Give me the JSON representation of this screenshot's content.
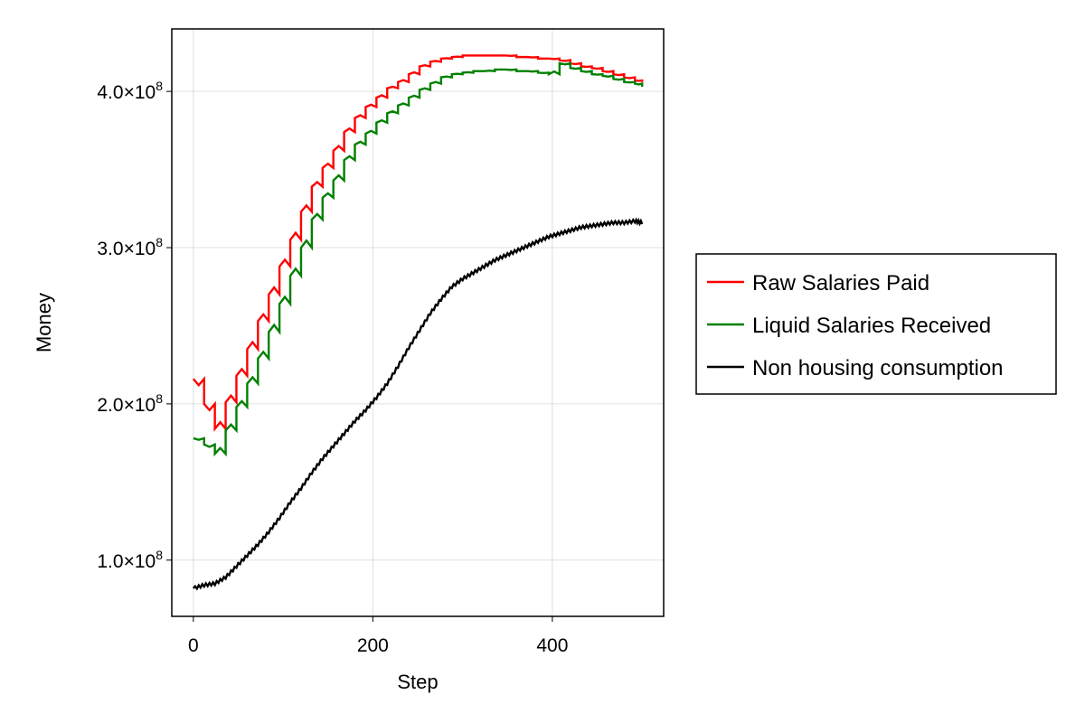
{
  "chart_data": {
    "type": "line",
    "title": "",
    "xlabel": "Step",
    "ylabel": "Money",
    "xlim": [
      -24,
      524
    ],
    "ylim": [
      64000000,
      440000000
    ],
    "xticks": [
      {
        "value": 0,
        "label": "0"
      },
      {
        "value": 200,
        "label": "200"
      },
      {
        "value": 400,
        "label": "400"
      }
    ],
    "yticks": [
      {
        "value": 100000000,
        "mantissa": "1.0×10",
        "exponent": "8"
      },
      {
        "value": 200000000,
        "mantissa": "2.0×10",
        "exponent": "8"
      },
      {
        "value": 300000000,
        "mantissa": "3.0×10",
        "exponent": "8"
      },
      {
        "value": 400000000,
        "mantissa": "4.0×10",
        "exponent": "8"
      }
    ],
    "grid": true,
    "legend_position": "right",
    "series": [
      {
        "name": "Raw Salaries Paid",
        "color": "#ff0000",
        "sawtooth": true,
        "x": [
          0,
          12,
          24,
          36,
          48,
          60,
          72,
          84,
          96,
          108,
          120,
          132,
          144,
          156,
          168,
          180,
          192,
          204,
          216,
          228,
          240,
          252,
          264,
          276,
          288,
          300,
          312,
          324,
          336,
          348,
          360,
          372,
          384,
          396,
          408,
          420,
          432,
          444,
          456,
          468,
          480,
          492,
          500
        ],
        "values": [
          216000000,
          200000000,
          184000000,
          201000000,
          218000000,
          235000000,
          253000000,
          270000000,
          288000000,
          305000000,
          323000000,
          339000000,
          351000000,
          362000000,
          374000000,
          383000000,
          390000000,
          396000000,
          402000000,
          406000000,
          411000000,
          416000000,
          419000000,
          421000000,
          422000000,
          423000000,
          423000000,
          423000000,
          423000000,
          423000000,
          422000000,
          422000000,
          421000000,
          421000000,
          420000000,
          418000000,
          416000000,
          415000000,
          413000000,
          411000000,
          409000000,
          407000000,
          406000000
        ]
      },
      {
        "name": "Liquid Salaries Received",
        "color": "#008000",
        "sawtooth": true,
        "x": [
          0,
          12,
          24,
          36,
          48,
          60,
          72,
          84,
          96,
          108,
          120,
          132,
          144,
          156,
          168,
          180,
          192,
          204,
          216,
          228,
          240,
          252,
          264,
          276,
          288,
          300,
          312,
          324,
          336,
          348,
          360,
          372,
          384,
          396,
          408,
          420,
          432,
          444,
          456,
          468,
          480,
          492,
          500
        ],
        "values": [
          178000000,
          174000000,
          168000000,
          183000000,
          198000000,
          213000000,
          229000000,
          246000000,
          264000000,
          282000000,
          300000000,
          318000000,
          332000000,
          343000000,
          356000000,
          366000000,
          373000000,
          380000000,
          386000000,
          391000000,
          396000000,
          401000000,
          405000000,
          409000000,
          411000000,
          412000000,
          413000000,
          413000000,
          414000000,
          414000000,
          413000000,
          413000000,
          412000000,
          411000000,
          418000000,
          415000000,
          413000000,
          411000000,
          410000000,
          408000000,
          406000000,
          405000000,
          403000000
        ]
      },
      {
        "name": "Non housing consumption",
        "color": "#000000",
        "sawtooth": false,
        "x": [
          0,
          12,
          24,
          36,
          48,
          60,
          72,
          84,
          96,
          108,
          120,
          132,
          144,
          156,
          168,
          180,
          192,
          204,
          216,
          228,
          240,
          252,
          264,
          276,
          288,
          300,
          312,
          324,
          336,
          348,
          360,
          372,
          384,
          396,
          408,
          420,
          432,
          444,
          456,
          468,
          480,
          492,
          500
        ],
        "values": [
          82000000,
          84000000,
          85000000,
          89000000,
          96000000,
          103000000,
          110000000,
          118000000,
          127000000,
          137000000,
          146000000,
          156000000,
          165000000,
          173000000,
          181000000,
          189000000,
          196000000,
          204000000,
          213000000,
          224000000,
          236000000,
          247000000,
          258000000,
          267000000,
          275000000,
          280000000,
          284000000,
          288000000,
          292000000,
          295000000,
          298000000,
          301000000,
          304000000,
          307000000,
          309000000,
          311000000,
          313000000,
          314000000,
          315000000,
          316000000,
          316000000,
          317000000,
          316000000
        ]
      }
    ]
  }
}
